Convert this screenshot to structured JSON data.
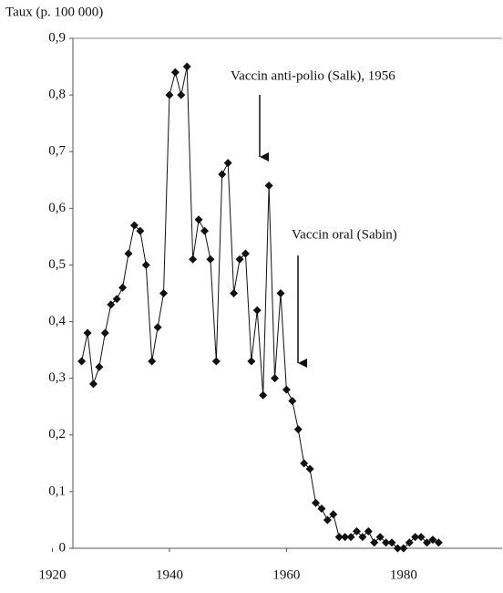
{
  "chart_data": {
    "type": "line",
    "y_axis_label": "Taux (p. 100 000)",
    "x": [
      1925,
      1926,
      1927,
      1928,
      1929,
      1930,
      1931,
      1932,
      1933,
      1934,
      1935,
      1936,
      1937,
      1938,
      1939,
      1940,
      1941,
      1942,
      1943,
      1944,
      1945,
      1946,
      1947,
      1948,
      1949,
      1950,
      1951,
      1952,
      1953,
      1954,
      1955,
      1956,
      1957,
      1958,
      1959,
      1960,
      1961,
      1962,
      1963,
      1964,
      1965,
      1966,
      1967,
      1968,
      1969,
      1970,
      1971,
      1972,
      1973,
      1974,
      1975,
      1976,
      1977,
      1978,
      1979,
      1980,
      1981,
      1982,
      1983,
      1984,
      1985,
      1986
    ],
    "series": [
      {
        "color": "#111111",
        "values": [
          0.33,
          0.38,
          0.29,
          0.32,
          0.38,
          0.43,
          0.44,
          0.46,
          0.52,
          0.57,
          0.56,
          0.5,
          0.33,
          0.39,
          0.45,
          0.8,
          0.84,
          0.8,
          0.85,
          0.51,
          0.58,
          0.56,
          0.51,
          0.33,
          0.66,
          0.68,
          0.45,
          0.51,
          0.52,
          0.33,
          0.42,
          0.27,
          0.64,
          0.3,
          0.45,
          0.28,
          0.26,
          0.21,
          0.15,
          0.14,
          0.08,
          0.07,
          0.05,
          0.06,
          0.02,
          0.02,
          0.02,
          0.03,
          0.02,
          0.03,
          0.01,
          0.02,
          0.01,
          0.01,
          0,
          0,
          0.01,
          0.02,
          0.02,
          0.01,
          0.015,
          0.01
        ]
      }
    ],
    "xlim": [
      1923.5,
      1997
    ],
    "xticks": [
      1920,
      1940,
      1960,
      1980
    ],
    "ylim": [
      0,
      0.9
    ],
    "yticks": [
      0,
      {
        "value": 0.1,
        "label": "0,1"
      },
      {
        "value": 0.2,
        "label": "0,2"
      },
      {
        "value": 0.3,
        "label": "0,3"
      },
      {
        "value": 0.4,
        "label": "0,4"
      },
      {
        "value": 0.5,
        "label": "0,5"
      },
      {
        "value": 0.6,
        "label": "0,6"
      },
      {
        "value": 0.7,
        "label": "0,7"
      },
      {
        "value": 0.8,
        "label": "0,8"
      },
      {
        "value": 0.9,
        "label": "0,9"
      }
    ],
    "annotations": [
      "Vaccin anti-polio (Salk), 1956",
      "Vaccin oral (Sabin)"
    ]
  }
}
